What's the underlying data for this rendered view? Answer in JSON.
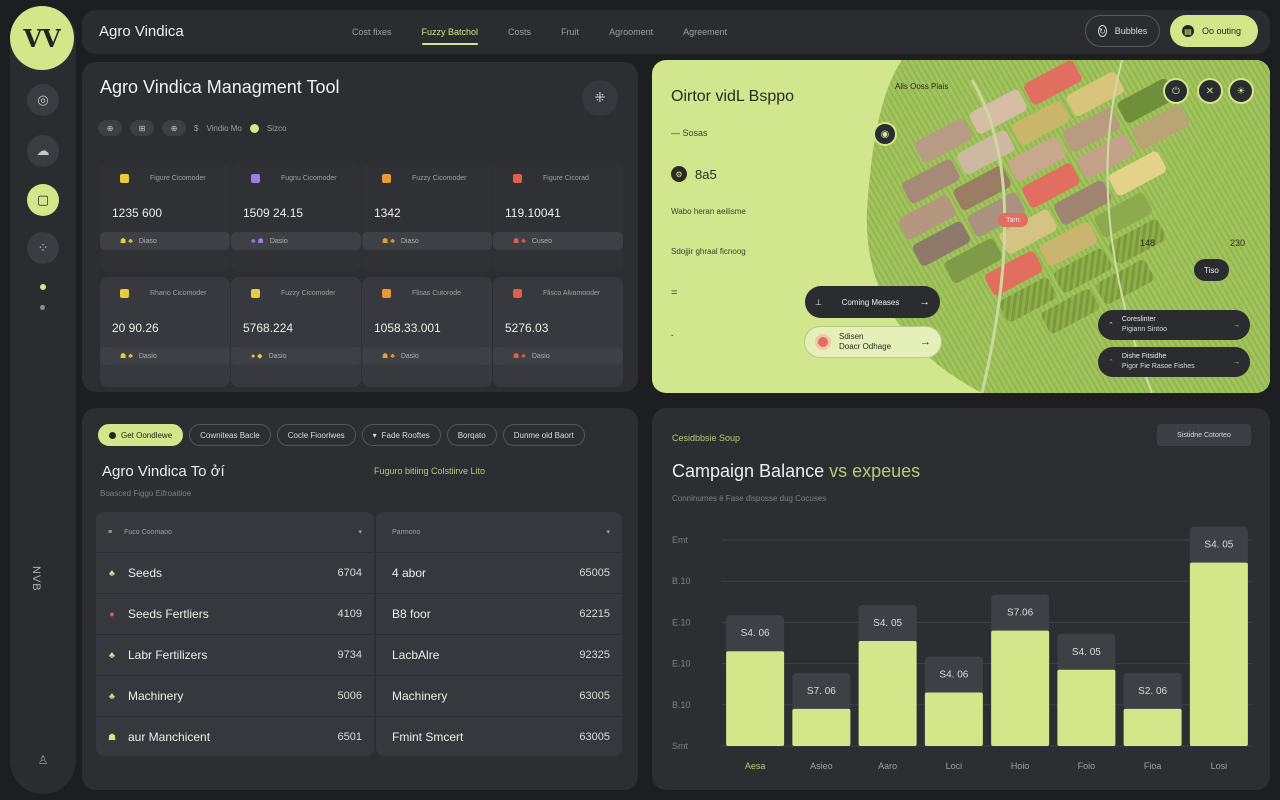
{
  "app": {
    "logo": "VV",
    "title": "Agro Vindica"
  },
  "nav": {
    "items": [
      "Cost fixes",
      "Fuzzy Batchol",
      "Costs",
      "Fruit",
      "Agrooment",
      "Agreement"
    ]
  },
  "top_actions": {
    "outline_label": "Bubbles",
    "fill_label": "Oo outing"
  },
  "sidebar": {
    "vertical_label": "NVB"
  },
  "overview": {
    "title": "Agro Vindica Managment Tool",
    "chips": [
      "⊕",
      "⊞",
      "⊕",
      "$"
    ],
    "chip_label": "Vindio Mo",
    "chip_label2": "Sizco",
    "kpis": [
      {
        "label": "Figure Cicomoder",
        "value": "1235 600",
        "color": "#e8cc3a",
        "foot": "Diaso",
        "icons": "☗ ♣"
      },
      {
        "label": "Fugnu Cicomoder",
        "value": "1509 24.15",
        "color": "#9b7fe8",
        "foot": "Dasio",
        "icons": "♣ ☗"
      },
      {
        "label": "Fuzzy Cicomoder",
        "value": "1342",
        "color": "#e89a3a",
        "foot": "Diaso",
        "icons": "☗ ♣"
      },
      {
        "label": "Figure Cicorad",
        "value": "119.10041",
        "color": "#e25d4b",
        "foot": "Cuseo",
        "icons": "☗ ♣"
      },
      {
        "label": "Rhano Cicomoder",
        "value": "20 90.26",
        "color": "#e8cc3a",
        "foot": "Dasio",
        "icons": "☗ ♣"
      },
      {
        "label": "Fuzzy Cicomoder",
        "value": "5768.224",
        "color": "#e8cc3a",
        "foot": "Dasio",
        "icons": "● ◆"
      },
      {
        "label": "Flisas Cutorode",
        "value": "1058.33.001",
        "color": "#e89a3a",
        "foot": "Dasio",
        "icons": "☗ ♣"
      },
      {
        "label": "Flisco Alvamooder",
        "value": "5276.03",
        "color": "#e25d4b",
        "foot": "Dasio",
        "icons": "☗ ♣"
      }
    ]
  },
  "map": {
    "title": "Oirtor vidL Bsppo",
    "subtitle": "— Sosas",
    "stat": "8a5",
    "line1": "Wabo heran aeilisme",
    "line2": "Sdojjir ghraal ficnoog",
    "line3": "=",
    "line4": "ˇ",
    "top_label": "Alis Ooss Piais",
    "pill_dark": "Coming Meases",
    "pill_light_line1": "Sdisen",
    "pill_light_line2": "Doacr Odhage",
    "num_a": "148",
    "num_b": "230",
    "tag": "Tiso",
    "small_tag": "Tarn",
    "alerts": [
      {
        "line1": "Coreslinter",
        "line2": "Pigiann Sintoo"
      },
      {
        "line1": "Dishe Fitsidhe",
        "line2": "Pigor Fie Rasoe Fishes"
      }
    ]
  },
  "costs": {
    "tabs": [
      "Get Oondlewe",
      "Cowniteas Bacle",
      "Cocle Fiooriwes",
      "Fade Rooftes",
      "Borqato",
      "Dunme old Baort"
    ],
    "title": "Agro Vindica To ởí",
    "green_label": "Fuguro bitiing Colstiirve Lito",
    "subtitle": "Boasced Figgo Eifroaitioe",
    "left_header": "Fuco Coomaoo",
    "right_header": "Parmono",
    "left_rows": [
      {
        "icon": "♣",
        "name": "Seeds",
        "value": "6704",
        "color": "#d4e68a"
      },
      {
        "icon": "●",
        "name": "Seeds Fertliers",
        "value": "4109",
        "color": "#e25d4b"
      },
      {
        "icon": "♣",
        "name": "Labr Fertilizers",
        "value": "9734",
        "color": "#d4e68a"
      },
      {
        "icon": "♣",
        "name": "Machinery",
        "value": "5006",
        "color": "#d4e68a"
      },
      {
        "icon": "☗",
        "name": "aur Manchicent",
        "value": "6501",
        "color": "#d4e68a"
      }
    ],
    "right_rows": [
      {
        "name": "4 abor",
        "value": "65005"
      },
      {
        "name": "B8 foor",
        "value": "62215"
      },
      {
        "name": "LacbAlre",
        "value": "92325"
      },
      {
        "name": "Machinery",
        "value": "63005"
      },
      {
        "name": "Fmint Smcert",
        "value": "63005"
      }
    ]
  },
  "chart_data": {
    "type": "bar",
    "tag": "Cesidbbsie Soup",
    "button": "Sistidne Cotorteo",
    "title_main": "Campaign Balance",
    "title_accent": "vs expeues",
    "subtitle": "Conninumes ē Fase disposse dug Cocuses",
    "y_tick_labels": [
      "Emt",
      "B.10",
      "E.10",
      "E.10",
      "B.10",
      "Smt"
    ],
    "categories": [
      "Aesa",
      "Asieo",
      "Aaro",
      "Loci",
      "Hoio",
      "Foio",
      "Fioa",
      "Losi"
    ],
    "value_labels": [
      "S4. 06",
      "S7. 06",
      "S4. 05",
      "S4. 06",
      "S7.06",
      "S4. 05",
      "S2. 06",
      "S4. 05"
    ],
    "values": [
      4.6,
      1.8,
      5.1,
      2.6,
      5.6,
      3.7,
      1.8,
      8.9
    ],
    "ylim": [
      0,
      10
    ]
  },
  "colors": {
    "accent": "#d4e68a",
    "panel": "#2c2e32",
    "background": "#1c1e21"
  }
}
